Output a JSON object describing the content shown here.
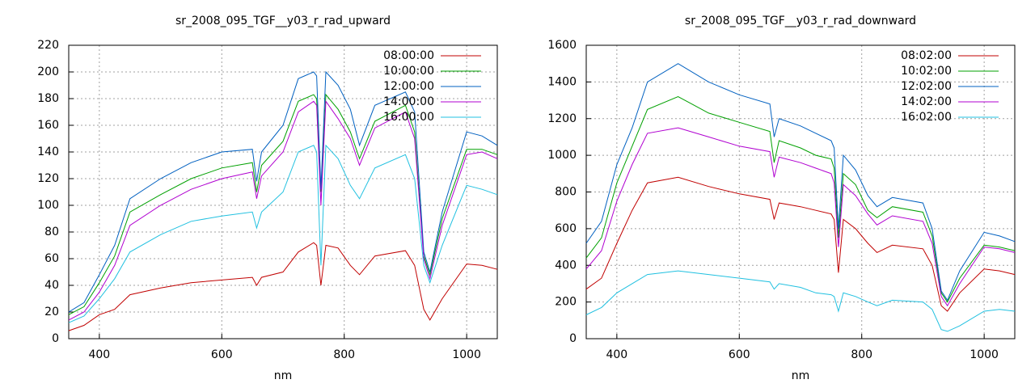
{
  "chart_data": [
    {
      "type": "line",
      "title": "sr_2008_095_TGF__y03_r_rad_upward",
      "x_label": "nm",
      "x": [
        350,
        375,
        400,
        425,
        450,
        500,
        550,
        600,
        650,
        657,
        665,
        700,
        725,
        750,
        755,
        762,
        770,
        790,
        810,
        825,
        850,
        900,
        915,
        930,
        940,
        960,
        1000,
        1025,
        1050
      ],
      "xlim": [
        350,
        1050
      ],
      "xticks": [
        400,
        600,
        800,
        1000
      ],
      "ylim": [
        0,
        220
      ],
      "yticks": [
        0,
        20,
        40,
        60,
        80,
        100,
        120,
        140,
        160,
        180,
        200,
        220
      ],
      "grid": true,
      "legend": "top-right",
      "series": [
        {
          "name": "08:00:00",
          "color": "#c00000",
          "values": [
            6,
            10,
            18,
            22,
            33,
            38,
            42,
            44,
            46,
            40,
            46,
            50,
            65,
            72,
            70,
            40,
            70,
            68,
            55,
            48,
            62,
            66,
            55,
            22,
            14,
            30,
            56,
            55,
            52
          ]
        },
        {
          "name": "10:00:00",
          "color": "#00a000",
          "values": [
            18,
            24,
            42,
            62,
            95,
            108,
            120,
            128,
            132,
            110,
            130,
            148,
            178,
            183,
            180,
            110,
            183,
            172,
            155,
            135,
            163,
            175,
            155,
            62,
            48,
            90,
            142,
            142,
            138
          ]
        },
        {
          "name": "12:00:00",
          "color": "#0060c0",
          "values": [
            20,
            27,
            48,
            70,
            105,
            120,
            132,
            140,
            142,
            118,
            140,
            160,
            195,
            200,
            197,
            112,
            200,
            190,
            172,
            145,
            175,
            185,
            170,
            65,
            50,
            95,
            155,
            152,
            145
          ]
        },
        {
          "name": "14:00:00",
          "color": "#b000d0",
          "values": [
            14,
            20,
            35,
            55,
            85,
            100,
            112,
            120,
            125,
            105,
            122,
            140,
            170,
            178,
            175,
            100,
            178,
            165,
            150,
            130,
            158,
            170,
            150,
            60,
            45,
            85,
            138,
            140,
            135
          ]
        },
        {
          "name": "16:00:00",
          "color": "#20c0e0",
          "values": [
            12,
            17,
            30,
            45,
            65,
            78,
            88,
            92,
            95,
            83,
            95,
            110,
            140,
            145,
            140,
            55,
            145,
            135,
            115,
            105,
            128,
            138,
            120,
            55,
            42,
            70,
            115,
            112,
            108
          ]
        }
      ]
    },
    {
      "type": "line",
      "title": "sr_2008_095_TGF__y03_r_rad_downward",
      "x_label": "nm",
      "x": [
        350,
        375,
        400,
        425,
        450,
        500,
        550,
        600,
        650,
        657,
        665,
        700,
        725,
        750,
        755,
        762,
        770,
        790,
        810,
        825,
        850,
        900,
        915,
        930,
        940,
        960,
        1000,
        1025,
        1050
      ],
      "xlim": [
        350,
        1050
      ],
      "xticks": [
        400,
        600,
        800,
        1000
      ],
      "ylim": [
        0,
        1600
      ],
      "yticks": [
        0,
        200,
        400,
        600,
        800,
        1000,
        1200,
        1400,
        1600
      ],
      "grid": true,
      "legend": "top-right",
      "series": [
        {
          "name": "08:02:00",
          "color": "#c00000",
          "values": [
            270,
            330,
            520,
            700,
            850,
            880,
            830,
            790,
            760,
            650,
            740,
            720,
            700,
            680,
            650,
            360,
            650,
            600,
            520,
            470,
            510,
            490,
            400,
            180,
            150,
            250,
            380,
            370,
            350
          ]
        },
        {
          "name": "10:02:00",
          "color": "#00a000",
          "values": [
            440,
            550,
            850,
            1050,
            1250,
            1320,
            1230,
            1180,
            1130,
            960,
            1080,
            1040,
            1000,
            980,
            930,
            550,
            900,
            840,
            700,
            660,
            720,
            690,
            560,
            250,
            200,
            330,
            510,
            500,
            480
          ]
        },
        {
          "name": "12:02:00",
          "color": "#0060c0",
          "values": [
            520,
            640,
            950,
            1150,
            1400,
            1500,
            1400,
            1330,
            1280,
            1100,
            1200,
            1160,
            1120,
            1080,
            1040,
            600,
            1000,
            920,
            780,
            720,
            770,
            740,
            600,
            260,
            210,
            370,
            580,
            560,
            530
          ]
        },
        {
          "name": "14:02:00",
          "color": "#b000d0",
          "values": [
            380,
            480,
            750,
            950,
            1120,
            1150,
            1100,
            1050,
            1020,
            880,
            990,
            960,
            930,
            900,
            850,
            500,
            840,
            780,
            680,
            620,
            670,
            640,
            520,
            230,
            180,
            300,
            500,
            490,
            470
          ]
        },
        {
          "name": "16:02:00",
          "color": "#20c0e0",
          "values": [
            130,
            170,
            250,
            300,
            350,
            370,
            350,
            330,
            310,
            270,
            300,
            280,
            250,
            240,
            230,
            150,
            250,
            230,
            200,
            180,
            210,
            200,
            160,
            50,
            40,
            70,
            150,
            160,
            150
          ]
        }
      ]
    }
  ]
}
